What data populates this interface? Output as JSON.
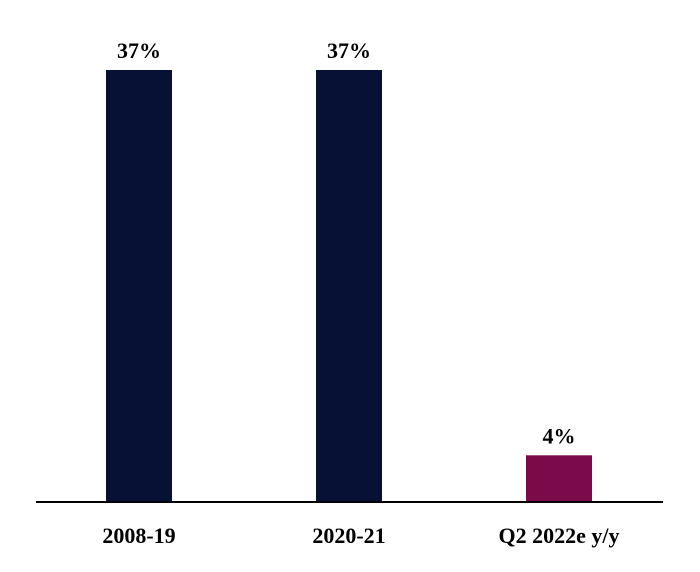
{
  "chart_data": {
    "type": "bar",
    "categories": [
      "2008-19",
      "2020-21",
      "Q2 2022e y/y"
    ],
    "values": [
      37,
      37,
      4
    ],
    "data_labels": [
      "37%",
      "37%",
      "4%"
    ],
    "colors": [
      "#061135",
      "#061135",
      "#7A0A4A"
    ],
    "ylim": [
      0,
      37
    ],
    "grid": false,
    "legend": "none"
  }
}
